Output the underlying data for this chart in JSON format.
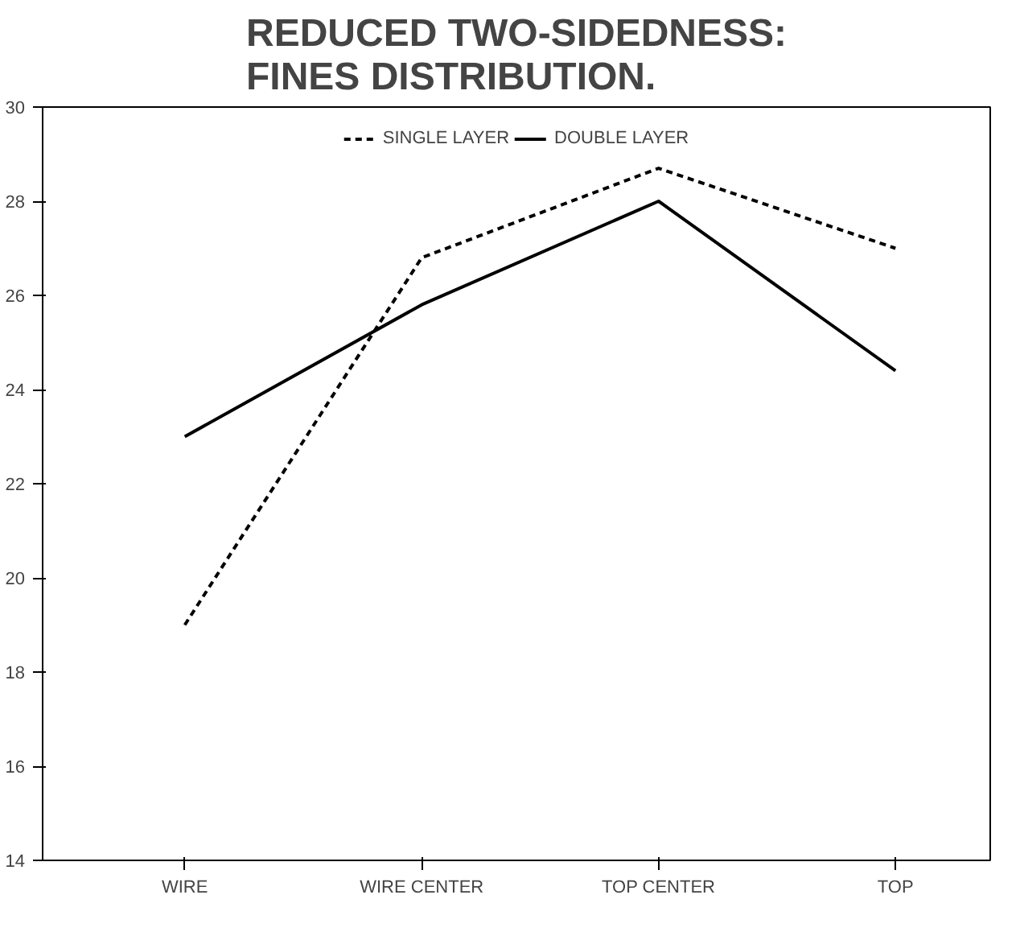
{
  "chart_data": {
    "type": "line",
    "title": "REDUCED TWO-SIDEDNESS:\nFINES DISTRIBUTION.",
    "categories": [
      "WIRE",
      "WIRE CENTER",
      "TOP CENTER",
      "TOP"
    ],
    "series": [
      {
        "name": "SINGLE LAYER",
        "color": "#000000",
        "line_style": "dashed",
        "values": [
          19.0,
          26.8,
          28.7,
          27.0
        ]
      },
      {
        "name": "DOUBLE LAYER",
        "color": "#000000",
        "line_style": "solid",
        "values": [
          23.0,
          25.8,
          28.0,
          24.4
        ]
      }
    ],
    "ylim": [
      14,
      30
    ],
    "yticks": [
      14,
      16,
      18,
      20,
      22,
      24,
      26,
      28,
      30
    ],
    "grid": false,
    "legend": "top"
  }
}
